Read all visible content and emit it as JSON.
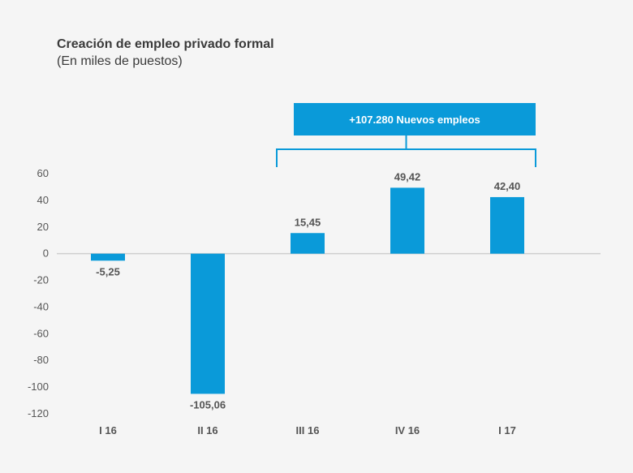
{
  "chart_data": {
    "type": "bar",
    "title": "Creación de empleo privado formal",
    "subtitle": "(En miles de puestos)",
    "categories": [
      "I 16",
      "II 16",
      "III 16",
      "IV 16",
      "I 17"
    ],
    "values": [
      -5.25,
      -105.06,
      15.45,
      49.42,
      42.4
    ],
    "data_labels": [
      "-5,25",
      "-105,06",
      "15,45",
      "49,42",
      "42,40"
    ],
    "yticks": [
      60,
      40,
      20,
      0,
      -20,
      -40,
      -60,
      -80,
      -100,
      -120
    ],
    "ylim": [
      -120,
      60
    ],
    "xlabel": "",
    "ylabel": "",
    "grid": false,
    "bar_color": "#0a9ad9",
    "annotation": {
      "text": "+107.280 Nuevos empleos",
      "spans_categories": [
        "III 16",
        "I 17"
      ]
    }
  }
}
